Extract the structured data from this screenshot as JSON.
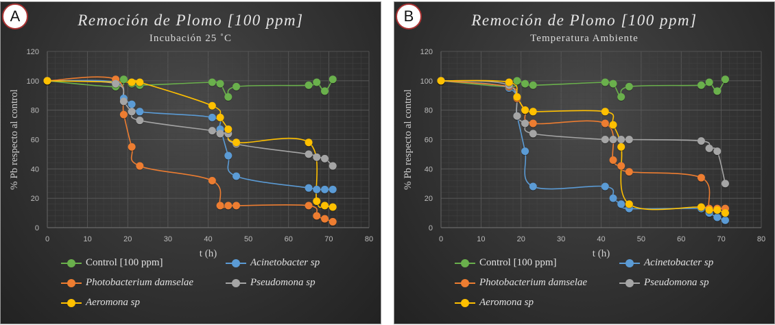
{
  "panels": [
    {
      "badge": "A",
      "title": "Remoción de Plomo  [100 ppm]",
      "subtitle": "Incubación 25 ˚C"
    },
    {
      "badge": "B",
      "title": "Remoción de Plomo  [100 ppm]",
      "subtitle": "Temperatura Ambiente"
    }
  ],
  "colors": {
    "control": "#6ab04c",
    "acinetobacter": "#5b9bd5",
    "photobacterium": "#ed7d31",
    "pseudomona": "#a5a5a5",
    "aeromona": "#ffc000"
  },
  "chart_data": [
    {
      "type": "line",
      "title": "Remoción de Plomo  [100 ppm]",
      "subtitle": "Incubación 25 ˚C",
      "xlabel": "t (h)",
      "ylabel": "% Pb respecto al control",
      "xlim": [
        0,
        80
      ],
      "ylim": [
        0,
        120
      ],
      "xticks": [
        0,
        10,
        20,
        30,
        40,
        50,
        60,
        70,
        80
      ],
      "yticks": [
        0,
        20,
        40,
        60,
        80,
        100,
        120
      ],
      "grid": true,
      "legend_position": "bottom",
      "series": [
        {
          "key": "control",
          "name": "Control [100 ppm]",
          "italic": false,
          "x": [
            0,
            17,
            19,
            21,
            23,
            41,
            43,
            45,
            47,
            65,
            67,
            69,
            71
          ],
          "y": [
            100,
            96,
            101,
            98,
            97,
            99,
            98,
            89,
            96,
            97,
            99,
            93,
            101
          ]
        },
        {
          "key": "acinetobacter",
          "name": "Acinetobacter sp",
          "italic": true,
          "x": [
            0,
            17,
            19,
            21,
            23,
            41,
            43,
            45,
            47,
            65,
            67,
            69,
            71
          ],
          "y": [
            100,
            99,
            88,
            84,
            79,
            75,
            67,
            49,
            35,
            27,
            26,
            26,
            26
          ]
        },
        {
          "key": "photobacterium",
          "name": "Photobacterium damselae",
          "italic": true,
          "x": [
            0,
            17,
            19,
            21,
            23,
            41,
            43,
            45,
            47,
            65,
            67,
            69,
            71
          ],
          "y": [
            100,
            101,
            77,
            55,
            42,
            32,
            15,
            15,
            15,
            15,
            8,
            6,
            4
          ]
        },
        {
          "key": "pseudomona",
          "name": "Pseudomona sp",
          "italic": true,
          "x": [
            0,
            17,
            19,
            21,
            23,
            41,
            43,
            45,
            47,
            65,
            67,
            69,
            71
          ],
          "y": [
            100,
            98,
            86,
            79,
            73,
            66,
            64,
            64,
            57,
            50,
            48,
            47,
            42
          ]
        },
        {
          "key": "aeromona",
          "name": "Aeromona sp",
          "italic": true,
          "x": [
            0,
            21,
            23,
            41,
            43,
            45,
            47,
            65,
            67,
            69,
            71
          ],
          "y": [
            100,
            99,
            99,
            83,
            75,
            67,
            58,
            58,
            18,
            15,
            14
          ]
        }
      ]
    },
    {
      "type": "line",
      "title": "Remoción de Plomo  [100 ppm]",
      "subtitle": "Temperatura Ambiente",
      "xlabel": "t (h)",
      "ylabel": "% Pb respecto al control",
      "xlim": [
        0,
        80
      ],
      "ylim": [
        0,
        120
      ],
      "xticks": [
        0,
        10,
        20,
        30,
        40,
        50,
        60,
        70,
        80
      ],
      "yticks": [
        0,
        20,
        40,
        60,
        80,
        100,
        120
      ],
      "grid": true,
      "legend_position": "bottom",
      "series": [
        {
          "key": "control",
          "name": "Control [100 ppm]",
          "italic": false,
          "x": [
            0,
            17,
            19,
            21,
            23,
            41,
            43,
            45,
            47,
            65,
            67,
            69,
            71
          ],
          "y": [
            100,
            96,
            100,
            98,
            97,
            99,
            98,
            89,
            96,
            97,
            99,
            93,
            101
          ]
        },
        {
          "key": "acinetobacter",
          "name": "Acinetobacter sp",
          "italic": true,
          "x": [
            0,
            17,
            19,
            21,
            23,
            41,
            43,
            45,
            47,
            65,
            67,
            69,
            71
          ],
          "y": [
            100,
            95,
            76,
            52,
            28,
            28,
            20,
            16,
            13,
            13,
            10,
            7,
            5
          ]
        },
        {
          "key": "photobacterium",
          "name": "Photobacterium damselae",
          "italic": true,
          "x": [
            0,
            17,
            19,
            21,
            23,
            41,
            43,
            45,
            47,
            65,
            67,
            69,
            71
          ],
          "y": [
            100,
            96,
            88,
            80,
            71,
            71,
            46,
            42,
            38,
            34,
            13,
            13,
            13
          ]
        },
        {
          "key": "pseudomona",
          "name": "Pseudomona sp",
          "italic": true,
          "x": [
            0,
            17,
            19,
            21,
            23,
            41,
            43,
            45,
            47,
            65,
            67,
            69,
            71
          ],
          "y": [
            100,
            97,
            76,
            71,
            64,
            60,
            60,
            60,
            60,
            59,
            54,
            52,
            30
          ]
        },
        {
          "key": "aeromona",
          "name": "Aeromona sp",
          "italic": true,
          "x": [
            0,
            17,
            19,
            21,
            23,
            41,
            43,
            45,
            47,
            65,
            67,
            69,
            71
          ],
          "y": [
            100,
            99,
            89,
            80,
            79,
            79,
            70,
            55,
            16,
            14,
            12,
            12,
            10
          ]
        }
      ]
    }
  ]
}
